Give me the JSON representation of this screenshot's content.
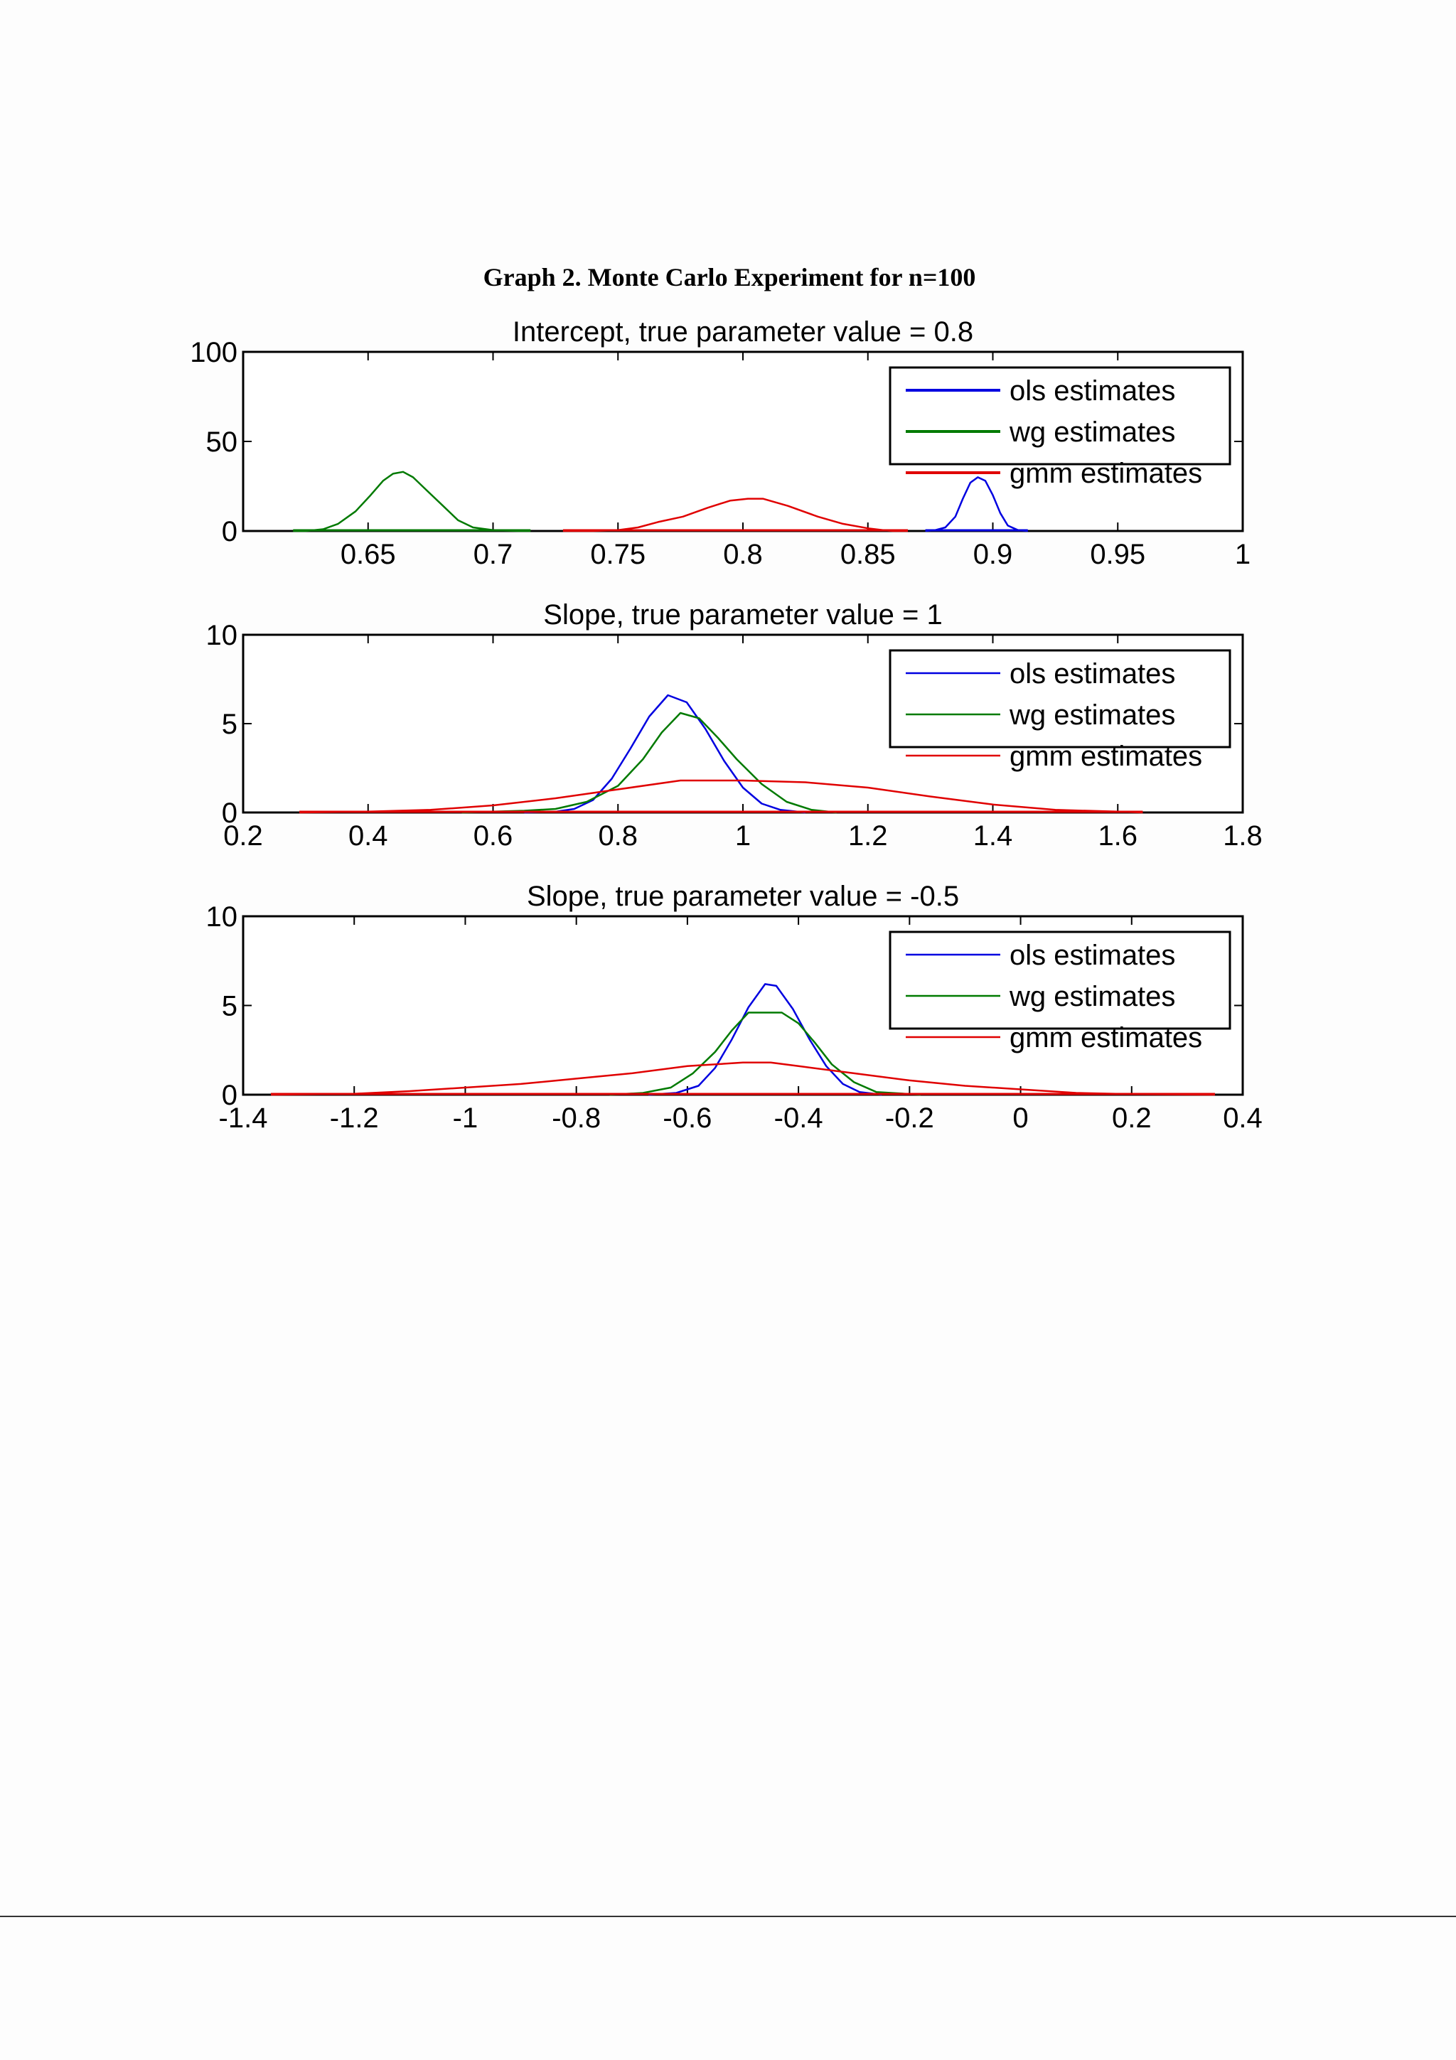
{
  "figure": {
    "title": "Graph 2. Monte Carlo Experiment for n=100"
  },
  "colors": {
    "ols": "#0000e0",
    "wg": "#007a00",
    "gmm": "#e00000",
    "axis": "#000000"
  },
  "chart_data": [
    {
      "type": "line",
      "title": "Intercept, true parameter value = 0.8",
      "xlim": [
        0.6,
        1.0
      ],
      "ylim": [
        0,
        100
      ],
      "xticks": [
        0.6,
        0.65,
        0.7,
        0.75,
        0.8,
        0.85,
        0.9,
        0.95,
        1.0
      ],
      "xtick_labels": [
        "",
        "0.65",
        "0.7",
        "0.75",
        "0.8",
        "0.85",
        "0.9",
        "0.95",
        "1"
      ],
      "yticks": [
        0,
        50,
        100
      ],
      "ytick_labels": [
        "0",
        "50",
        "100"
      ],
      "legend": {
        "placement": "top-right",
        "entries": [
          "ols estimates",
          "wg estimates",
          "gmm estimates"
        ]
      },
      "series": [
        {
          "name": "ols estimates",
          "color": "#0000e0",
          "points": [
            [
              0.873,
              0
            ],
            [
              0.877,
              0.5
            ],
            [
              0.881,
              2
            ],
            [
              0.885,
              8
            ],
            [
              0.888,
              18
            ],
            [
              0.891,
              27
            ],
            [
              0.894,
              30
            ],
            [
              0.897,
              28
            ],
            [
              0.9,
              20
            ],
            [
              0.903,
              10
            ],
            [
              0.906,
              3
            ],
            [
              0.91,
              0.5
            ],
            [
              0.914,
              0
            ]
          ]
        },
        {
          "name": "wg estimates",
          "color": "#007a00",
          "points": [
            [
              0.62,
              0
            ],
            [
              0.625,
              0
            ],
            [
              0.632,
              1
            ],
            [
              0.638,
              4
            ],
            [
              0.645,
              11
            ],
            [
              0.651,
              20
            ],
            [
              0.656,
              28
            ],
            [
              0.66,
              32
            ],
            [
              0.664,
              33
            ],
            [
              0.668,
              30
            ],
            [
              0.674,
              22
            ],
            [
              0.68,
              14
            ],
            [
              0.686,
              6
            ],
            [
              0.692,
              2
            ],
            [
              0.7,
              0.5
            ],
            [
              0.71,
              0
            ],
            [
              0.715,
              0
            ]
          ]
        },
        {
          "name": "gmm estimates",
          "color": "#e00000",
          "points": [
            [
              0.728,
              0
            ],
            [
              0.74,
              0
            ],
            [
              0.75,
              0.5
            ],
            [
              0.758,
              2
            ],
            [
              0.766,
              5
            ],
            [
              0.776,
              8
            ],
            [
              0.786,
              13
            ],
            [
              0.795,
              17
            ],
            [
              0.802,
              18
            ],
            [
              0.808,
              18
            ],
            [
              0.818,
              14
            ],
            [
              0.83,
              8
            ],
            [
              0.84,
              4
            ],
            [
              0.85,
              1.5
            ],
            [
              0.856,
              0.5
            ],
            [
              0.86,
              0
            ],
            [
              0.866,
              0
            ]
          ]
        }
      ]
    },
    {
      "type": "line",
      "title": "Slope, true parameter value = 1",
      "xlim": [
        0.2,
        1.8
      ],
      "ylim": [
        0,
        10
      ],
      "xticks": [
        0.2,
        0.4,
        0.6,
        0.8,
        1.0,
        1.2,
        1.4,
        1.6,
        1.8
      ],
      "xtick_labels": [
        "0.2",
        "0.4",
        "0.6",
        "0.8",
        "1",
        "1.2",
        "1.4",
        "1.6",
        "1.8"
      ],
      "yticks": [
        0,
        5,
        10
      ],
      "ytick_labels": [
        "0",
        "5",
        "10"
      ],
      "legend": {
        "placement": "top-right",
        "entries": [
          "ols estimates",
          "wg estimates",
          "gmm estimates"
        ]
      },
      "series": [
        {
          "name": "ols estimates",
          "color": "#0000e0",
          "points": [
            [
              0.65,
              0
            ],
            [
              0.7,
              0.05
            ],
            [
              0.73,
              0.2
            ],
            [
              0.76,
              0.7
            ],
            [
              0.79,
              1.9
            ],
            [
              0.82,
              3.6
            ],
            [
              0.85,
              5.4
            ],
            [
              0.88,
              6.6
            ],
            [
              0.91,
              6.2
            ],
            [
              0.94,
              4.7
            ],
            [
              0.97,
              2.9
            ],
            [
              1.0,
              1.4
            ],
            [
              1.03,
              0.5
            ],
            [
              1.06,
              0.15
            ],
            [
              1.1,
              0
            ]
          ]
        },
        {
          "name": "wg estimates",
          "color": "#007a00",
          "points": [
            [
              0.55,
              0
            ],
            [
              0.65,
              0.1
            ],
            [
              0.7,
              0.2
            ],
            [
              0.75,
              0.6
            ],
            [
              0.8,
              1.5
            ],
            [
              0.84,
              3.0
            ],
            [
              0.87,
              4.5
            ],
            [
              0.9,
              5.6
            ],
            [
              0.93,
              5.3
            ],
            [
              0.96,
              4.2
            ],
            [
              0.99,
              3.0
            ],
            [
              1.03,
              1.6
            ],
            [
              1.07,
              0.6
            ],
            [
              1.11,
              0.15
            ],
            [
              1.15,
              0
            ]
          ]
        },
        {
          "name": "gmm estimates",
          "color": "#e00000",
          "points": [
            [
              0.29,
              0
            ],
            [
              0.4,
              0.05
            ],
            [
              0.5,
              0.15
            ],
            [
              0.6,
              0.4
            ],
            [
              0.7,
              0.8
            ],
            [
              0.8,
              1.3
            ],
            [
              0.9,
              1.8
            ],
            [
              1.0,
              1.8
            ],
            [
              1.1,
              1.7
            ],
            [
              1.2,
              1.4
            ],
            [
              1.3,
              0.9
            ],
            [
              1.4,
              0.45
            ],
            [
              1.5,
              0.15
            ],
            [
              1.6,
              0.05
            ],
            [
              1.64,
              0
            ]
          ]
        }
      ]
    },
    {
      "type": "line",
      "title": "Slope, true parameter value = -0.5",
      "xlim": [
        -1.4,
        0.4
      ],
      "ylim": [
        0,
        10
      ],
      "xticks": [
        -1.4,
        -1.2,
        -1.0,
        -0.8,
        -0.6,
        -0.4,
        -0.2,
        0,
        0.2,
        0.4
      ],
      "xtick_labels": [
        "-1.4",
        "-1.2",
        "-1",
        "-0.8",
        "-0.6",
        "-0.4",
        "-0.2",
        "0",
        "0.2",
        "0.4"
      ],
      "yticks": [
        0,
        5,
        10
      ],
      "ytick_labels": [
        "0",
        "5",
        "10"
      ],
      "legend": {
        "placement": "top-right",
        "entries": [
          "ols estimates",
          "wg estimates",
          "gmm estimates"
        ]
      },
      "series": [
        {
          "name": "ols estimates",
          "color": "#0000e0",
          "points": [
            [
              -0.67,
              0
            ],
            [
              -0.62,
              0.1
            ],
            [
              -0.58,
              0.5
            ],
            [
              -0.55,
              1.5
            ],
            [
              -0.52,
              3.1
            ],
            [
              -0.49,
              4.9
            ],
            [
              -0.46,
              6.2
            ],
            [
              -0.44,
              6.1
            ],
            [
              -0.41,
              4.8
            ],
            [
              -0.38,
              3.1
            ],
            [
              -0.35,
              1.6
            ],
            [
              -0.32,
              0.6
            ],
            [
              -0.29,
              0.15
            ],
            [
              -0.25,
              0
            ]
          ]
        },
        {
          "name": "wg estimates",
          "color": "#007a00",
          "points": [
            [
              -0.74,
              0
            ],
            [
              -0.68,
              0.1
            ],
            [
              -0.63,
              0.4
            ],
            [
              -0.59,
              1.2
            ],
            [
              -0.55,
              2.4
            ],
            [
              -0.52,
              3.6
            ],
            [
              -0.49,
              4.6
            ],
            [
              -0.46,
              4.6
            ],
            [
              -0.43,
              4.6
            ],
            [
              -0.4,
              4.0
            ],
            [
              -0.37,
              2.9
            ],
            [
              -0.34,
              1.7
            ],
            [
              -0.3,
              0.7
            ],
            [
              -0.26,
              0.15
            ],
            [
              -0.18,
              0
            ]
          ]
        },
        {
          "name": "gmm estimates",
          "color": "#e00000",
          "points": [
            [
              -1.35,
              0
            ],
            [
              -1.2,
              0.05
            ],
            [
              -1.1,
              0.2
            ],
            [
              -1.0,
              0.4
            ],
            [
              -0.9,
              0.6
            ],
            [
              -0.8,
              0.9
            ],
            [
              -0.7,
              1.2
            ],
            [
              -0.6,
              1.6
            ],
            [
              -0.5,
              1.8
            ],
            [
              -0.45,
              1.8
            ],
            [
              -0.4,
              1.6
            ],
            [
              -0.3,
              1.2
            ],
            [
              -0.2,
              0.8
            ],
            [
              -0.1,
              0.5
            ],
            [
              0.0,
              0.3
            ],
            [
              0.1,
              0.1
            ],
            [
              0.2,
              0.03
            ],
            [
              0.35,
              0
            ]
          ]
        }
      ]
    }
  ]
}
